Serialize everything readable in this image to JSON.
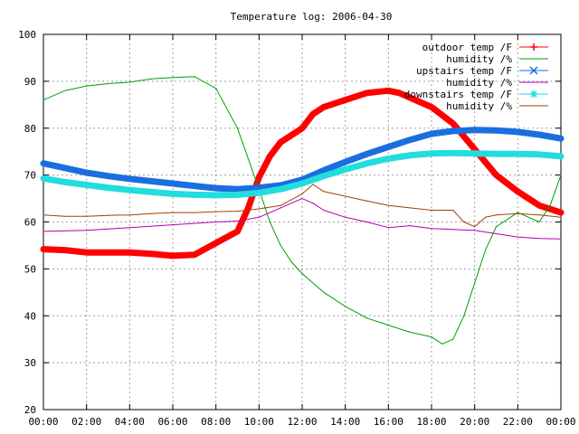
{
  "chart_data": {
    "type": "line",
    "title": "Temperature log: 2006-04-30",
    "xlabel": "",
    "ylabel": "",
    "xlim": [
      0,
      24
    ],
    "ylim": [
      20,
      100
    ],
    "xticks": [
      "00:00",
      "02:00",
      "04:00",
      "06:00",
      "08:00",
      "10:00",
      "12:00",
      "14:00",
      "16:00",
      "18:00",
      "20:00",
      "22:00",
      "00:00"
    ],
    "yticks": [
      "20",
      "30",
      "40",
      "50",
      "60",
      "70",
      "80",
      "90",
      "100"
    ],
    "grid": true,
    "legend_position": "top-right",
    "series": [
      {
        "name": "outdoor temp /F",
        "color": "#ff0000",
        "marker": "plus",
        "x": [
          0,
          1,
          2,
          3,
          4,
          5,
          6,
          7,
          8,
          9,
          9.5,
          10,
          10.5,
          11,
          12,
          12.5,
          13,
          14,
          15,
          16,
          16.5,
          17,
          18,
          19,
          20,
          21,
          22,
          23,
          24
        ],
        "y": [
          54.2,
          54,
          53.5,
          53.5,
          53.5,
          53.2,
          52.8,
          53,
          55.5,
          58,
          63,
          69.5,
          74,
          77,
          80,
          83,
          84.5,
          86,
          87.5,
          88,
          87.5,
          86.5,
          84.5,
          81,
          75.5,
          70,
          66.5,
          63.5,
          62
        ]
      },
      {
        "name": "humidity /%",
        "color": "#00a000",
        "marker": "none",
        "x": [
          0,
          1,
          2,
          3,
          4,
          5,
          6,
          7,
          8,
          9,
          10,
          10.5,
          11,
          11.5,
          12,
          13,
          14,
          15,
          16,
          17,
          18,
          18.5,
          19,
          19.5,
          20,
          20.5,
          21,
          22,
          23,
          23.5,
          24
        ],
        "y": [
          86,
          88,
          89,
          89.5,
          89.8,
          90.5,
          90.8,
          91,
          88.5,
          80,
          67,
          60,
          55,
          51.5,
          49,
          45,
          42,
          39.5,
          38,
          36.5,
          35.5,
          34,
          35,
          40,
          47,
          54,
          59,
          62,
          60,
          63.5,
          70
        ]
      },
      {
        "name": "upstairs temp /F",
        "color": "#1a6ee0",
        "marker": "cross",
        "x": [
          0,
          1,
          2,
          3,
          4,
          5,
          6,
          7,
          8,
          9,
          10,
          11,
          12,
          13,
          14,
          15,
          16,
          17,
          18,
          19,
          20,
          21,
          22,
          23,
          24
        ],
        "y": [
          72.5,
          71.5,
          70.5,
          69.8,
          69.2,
          68.7,
          68.2,
          67.7,
          67.2,
          67,
          67.3,
          67.8,
          69,
          71,
          72.8,
          74.5,
          76,
          77.5,
          78.8,
          79.4,
          79.6,
          79.5,
          79.2,
          78.6,
          77.8
        ]
      },
      {
        "name": "humidity /%",
        "color": "#b000b0",
        "marker": "none",
        "x": [
          0,
          2,
          4,
          6,
          8,
          9,
          10,
          11,
          12,
          12.5,
          13,
          14,
          15,
          16,
          17,
          18,
          19,
          20,
          21,
          22,
          23,
          24
        ],
        "y": [
          58,
          58.2,
          58.8,
          59.4,
          60,
          60.2,
          61,
          63,
          65,
          64,
          62.5,
          61,
          60,
          58.8,
          59.2,
          58.6,
          58.4,
          58.2,
          57.5,
          56.8,
          56.5,
          56.4
        ]
      },
      {
        "name": "downstairs temp /F",
        "color": "#22dddd",
        "marker": "star",
        "x": [
          0,
          1,
          2,
          3,
          4,
          5,
          6,
          7,
          8,
          9,
          10,
          11,
          12,
          13,
          14,
          15,
          16,
          17,
          18,
          19,
          20,
          21,
          22,
          23,
          24
        ],
        "y": [
          69.3,
          68.5,
          67.9,
          67.3,
          66.8,
          66.4,
          66,
          65.8,
          65.7,
          65.8,
          66.2,
          67,
          68.2,
          69.8,
          71.2,
          72.5,
          73.5,
          74.2,
          74.6,
          74.7,
          74.6,
          74.5,
          74.5,
          74.4,
          74
        ]
      },
      {
        "name": "humidity /%",
        "color": "#a04000",
        "marker": "none",
        "x": [
          0,
          1,
          2,
          3,
          4,
          5,
          6,
          7,
          8,
          9,
          10,
          11,
          12,
          12.5,
          13,
          14,
          15,
          16,
          17,
          18,
          19,
          19.5,
          20,
          20.5,
          21,
          22,
          23,
          24
        ],
        "y": [
          61.5,
          61.2,
          61.2,
          61.4,
          61.5,
          61.8,
          62,
          62,
          62.2,
          62.3,
          62.8,
          63.5,
          66,
          68,
          66.5,
          65.5,
          64.5,
          63.5,
          63,
          62.5,
          62.5,
          60,
          59,
          61,
          61.5,
          61.8,
          61.5,
          61
        ]
      }
    ]
  }
}
